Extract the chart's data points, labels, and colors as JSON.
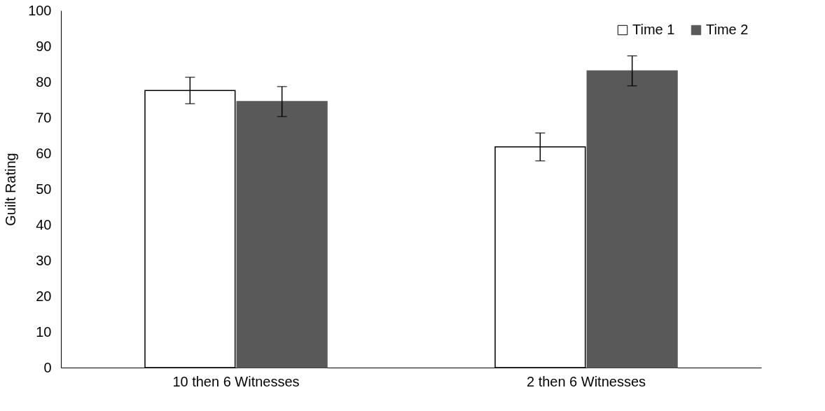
{
  "chart_data": {
    "type": "bar",
    "ylabel": "Guilt Rating",
    "categories": [
      "10 then 6 Witnesses",
      "2 then 6 Witnesses"
    ],
    "series": [
      {
        "name": "Time 1",
        "color": "#ffffff",
        "values": [
          77.6,
          61.8
        ],
        "errors": [
          3.7,
          3.9
        ]
      },
      {
        "name": "Time 2",
        "color": "#595959",
        "values": [
          74.5,
          83.1
        ],
        "errors": [
          4.2,
          4.2
        ]
      }
    ],
    "ylim": [
      0,
      100
    ],
    "yticks": [
      0,
      10,
      20,
      30,
      40,
      50,
      60,
      70,
      80,
      90,
      100
    ],
    "grid": false,
    "legend": "top right"
  }
}
